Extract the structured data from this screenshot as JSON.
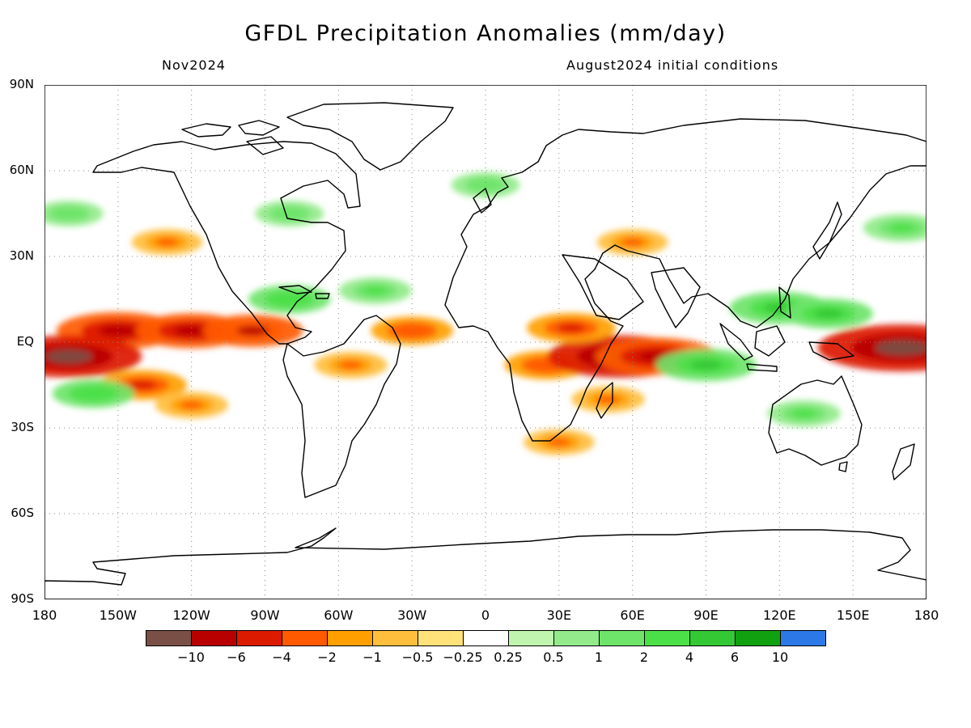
{
  "title": "GFDL Precipitation Anomalies (mm/day)",
  "subtitle_left": "Nov2024",
  "subtitle_right": "August2024 initial conditions",
  "y_ticks": [
    "90N",
    "60N",
    "30N",
    "EQ",
    "30S",
    "60S",
    "90S"
  ],
  "x_ticks": [
    "180",
    "150W",
    "120W",
    "90W",
    "60W",
    "30W",
    "0",
    "30E",
    "60E",
    "90E",
    "120E",
    "150E",
    "180"
  ],
  "colorbar": {
    "colors": [
      "#7a5046",
      "#b80000",
      "#dc1a00",
      "#ff5a00",
      "#ffa000",
      "#ffbe3c",
      "#ffe27a",
      "#ffffff",
      "#c0f5b0",
      "#92ea8a",
      "#6ee46a",
      "#4ce048",
      "#34c834",
      "#10a010",
      "#2c78e6"
    ],
    "labels": [
      "-10",
      "-6",
      "-4",
      "-2",
      "-1",
      "-0.5",
      "-0.25",
      "0.25",
      "0.5",
      "1",
      "2",
      "4",
      "6",
      "10"
    ]
  },
  "chart_data": {
    "type": "heatmap",
    "title": "GFDL Precipitation Anomalies (mm/day)",
    "subtitle_left": "Nov2024",
    "subtitle_right": "August2024 initial conditions",
    "x_range": [
      -180,
      180
    ],
    "y_range": [
      -90,
      90
    ],
    "grid": true,
    "colorbar_levels": [
      -10,
      -6,
      -4,
      -2,
      -1,
      -0.5,
      -0.25,
      0.25,
      0.5,
      1,
      2,
      4,
      6,
      10
    ],
    "anomaly_features": [
      {
        "lon": -150,
        "lat": 4,
        "value": -3
      },
      {
        "lon": -120,
        "lat": 4,
        "value": -2.5
      },
      {
        "lon": -95,
        "lat": 4,
        "value": -2
      },
      {
        "lon": -170,
        "lat": -5,
        "value": -4
      },
      {
        "lon": -140,
        "lat": -15,
        "value": -1.5
      },
      {
        "lon": -120,
        "lat": -22,
        "value": -0.8
      },
      {
        "lon": -160,
        "lat": -18,
        "value": 1.2
      },
      {
        "lon": -170,
        "lat": 45,
        "value": 0.6
      },
      {
        "lon": -130,
        "lat": 35,
        "value": -0.7
      },
      {
        "lon": -80,
        "lat": 15,
        "value": 1.2
      },
      {
        "lon": -45,
        "lat": 18,
        "value": 0.8
      },
      {
        "lon": -55,
        "lat": -8,
        "value": -0.8
      },
      {
        "lon": -30,
        "lat": 4,
        "value": -1.2
      },
      {
        "lon": 25,
        "lat": -8,
        "value": -1.3
      },
      {
        "lon": 55,
        "lat": -5,
        "value": -4
      },
      {
        "lon": 70,
        "lat": -5,
        "value": -3
      },
      {
        "lon": 35,
        "lat": 5,
        "value": -1.5
      },
      {
        "lon": 90,
        "lat": -8,
        "value": 2
      },
      {
        "lon": 120,
        "lat": 12,
        "value": 2
      },
      {
        "lon": 140,
        "lat": 10,
        "value": 1.5
      },
      {
        "lon": 170,
        "lat": -2,
        "value": -5
      },
      {
        "lon": 130,
        "lat": -25,
        "value": 0.8
      },
      {
        "lon": 170,
        "lat": 40,
        "value": 1
      },
      {
        "lon": 60,
        "lat": 35,
        "value": -0.7
      },
      {
        "lon": 0,
        "lat": 55,
        "value": 0.6
      },
      {
        "lon": 50,
        "lat": -20,
        "value": -0.8
      },
      {
        "lon": -80,
        "lat": 45,
        "value": 0.6
      },
      {
        "lon": 30,
        "lat": -35,
        "value": -0.7
      }
    ]
  }
}
